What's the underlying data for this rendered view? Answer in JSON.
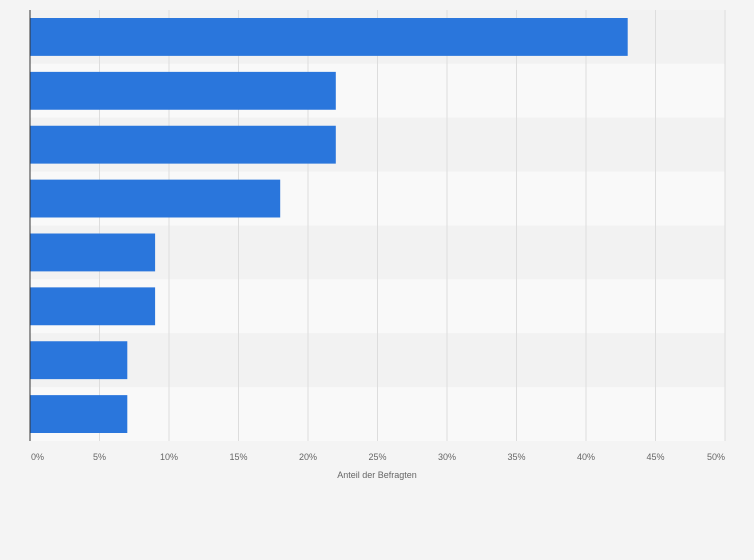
{
  "chart_data": {
    "type": "bar",
    "orientation": "horizontal",
    "categories": [
      "",
      "",
      "",
      "",
      "",
      "",
      "",
      ""
    ],
    "values": [
      43,
      22,
      22,
      18,
      9,
      9,
      7,
      7
    ],
    "xlabel": "Anteil der Befragten",
    "ylabel": "",
    "xlim": [
      0,
      50
    ],
    "ticks": [
      0,
      5,
      10,
      15,
      20,
      25,
      30,
      35,
      40,
      45,
      50
    ],
    "tick_labels": [
      "0%",
      "5%",
      "10%",
      "15%",
      "20%",
      "25%",
      "30%",
      "35%",
      "40%",
      "45%",
      "50%"
    ],
    "grid": true,
    "legend": "none"
  },
  "colors": {
    "bar": "#2a76dc",
    "band_dark": "#f2f2f2",
    "band_light": "#f9f9f9",
    "grid": "#dddddd",
    "axis": "#333333",
    "tick_text": "#666666"
  }
}
